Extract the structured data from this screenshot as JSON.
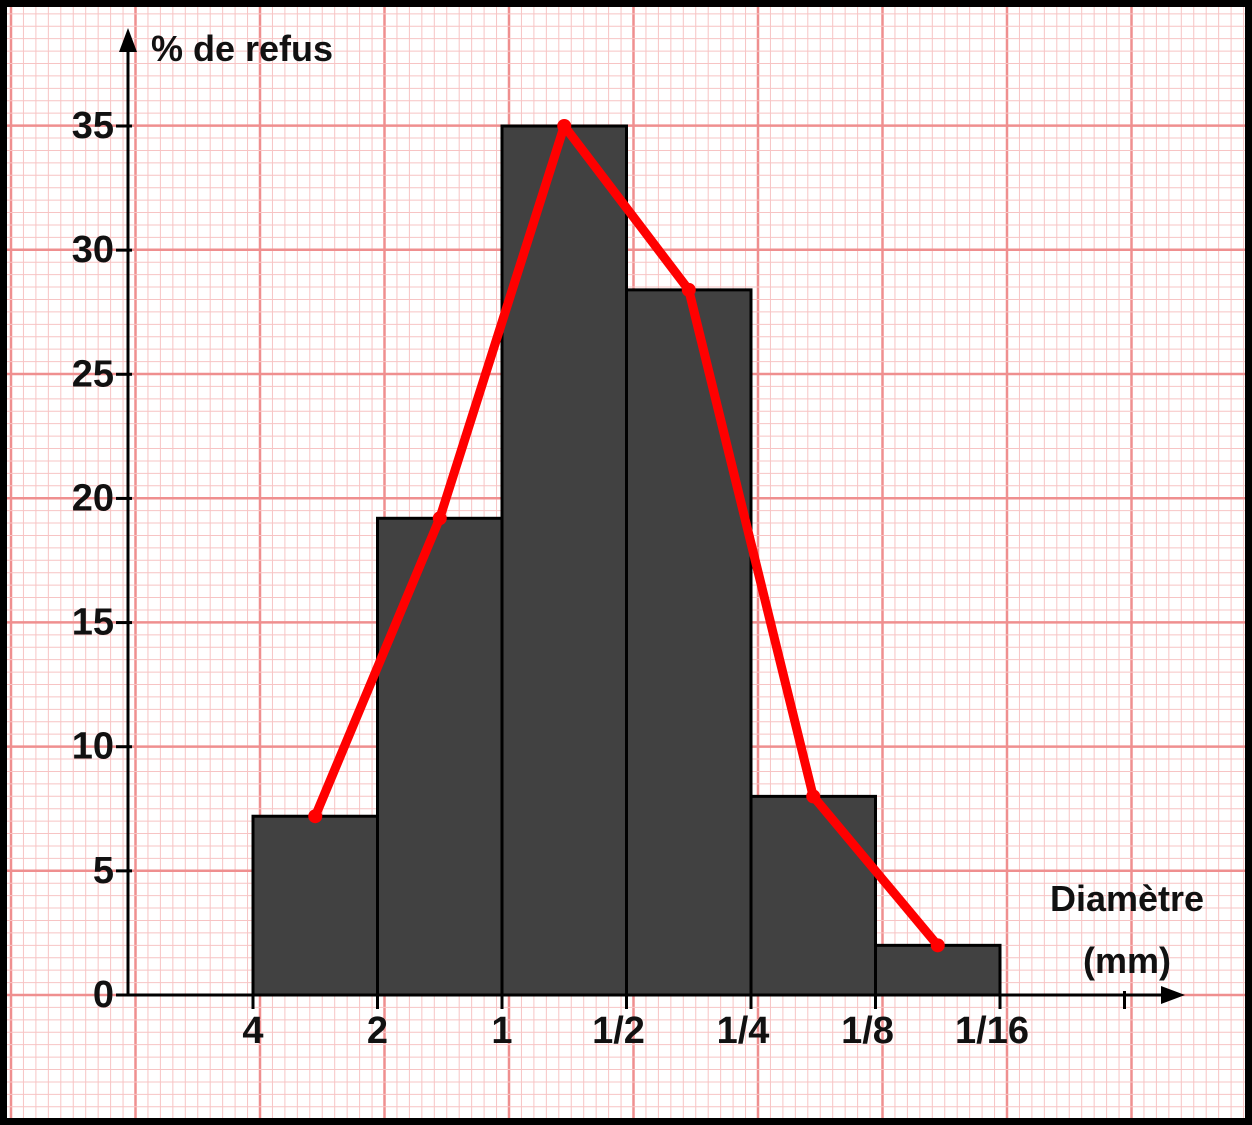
{
  "chart_data": {
    "type": "bar",
    "ylabel": "% de refus",
    "xlabel_lines": [
      "Diamètre",
      "(mm)"
    ],
    "x_tick_labels": [
      "4",
      "2",
      "1",
      "1/2",
      "1/4",
      "1/8",
      "1/16"
    ],
    "y_tick_labels": [
      "0",
      "5",
      "10",
      "15",
      "20",
      "25",
      "30",
      "35"
    ],
    "ylim": [
      0,
      35
    ],
    "bins": [
      {
        "from": "4",
        "to": "2",
        "value": 7.2
      },
      {
        "from": "2",
        "to": "1",
        "value": 19.2
      },
      {
        "from": "1",
        "to": "1/2",
        "value": 35
      },
      {
        "from": "1/2",
        "to": "1/4",
        "value": 28.4
      },
      {
        "from": "1/4",
        "to": "1/8",
        "value": 8
      },
      {
        "from": "1/8",
        "to": "1/16",
        "value": 2
      }
    ],
    "frequency_polygon": [
      7.2,
      19.2,
      35,
      28.4,
      8,
      2
    ],
    "grid": true,
    "colors": {
      "bar": "#414141",
      "polygon": "#ff0000",
      "grid_major": "#ef8f8f",
      "grid_minor": "#f7c4c4",
      "axis": "#000000"
    }
  }
}
